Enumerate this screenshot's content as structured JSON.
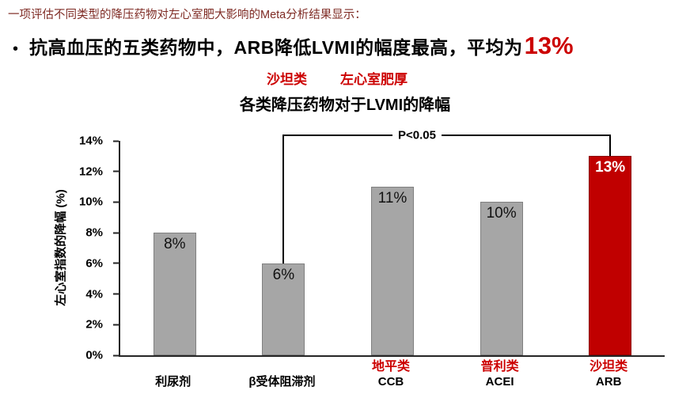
{
  "intro": "一项评估不同类型的降压药物对左心室肥大影响的Meta分析结果显示：",
  "bullet": {
    "marker": "•",
    "text": "抗高血压的五类药物中，ARB降低LVMI的幅度最高，平均为",
    "highlight": "13%"
  },
  "annotations": {
    "satan": "沙坦类",
    "lvh": "左心室肥厚"
  },
  "chart_data": {
    "type": "bar",
    "title": "各类降压药物对于LVMI的降幅",
    "ylabel": "左心室指数的降幅 (%)",
    "categories": [
      "利尿剂",
      "β受体阻滞剂",
      "CCB",
      "ACEI",
      "ARB"
    ],
    "values": [
      8,
      6,
      11,
      10,
      13
    ],
    "value_labels": [
      "8%",
      "6%",
      "11%",
      "10%",
      "13%"
    ],
    "class_labels": [
      "",
      "",
      "地平类",
      "普利类",
      "沙坦类"
    ],
    "yticks": [
      "0%",
      "2%",
      "4%",
      "6%",
      "8%",
      "10%",
      "12%",
      "14%"
    ],
    "ylim": [
      0,
      14
    ],
    "grid": false,
    "legend": "none",
    "significance": "P<0.05",
    "sig_from_index": 1,
    "sig_to_index": 4,
    "bar_color": "#a6a6a6",
    "bar_border": "#808080",
    "highlight_color": "#c00000",
    "highlight_border": "#8b0000",
    "highlight_index": 4
  }
}
